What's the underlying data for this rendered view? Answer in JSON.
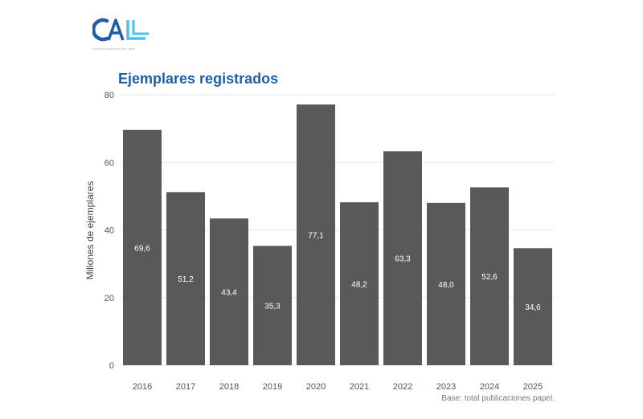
{
  "logo": {
    "caption": "CÁMARA ARGENTINA DEL LIBRO"
  },
  "colors": {
    "title": "#1f5ea8",
    "bar": "#595959",
    "bar_label": "#ffffff",
    "grid": "#e6e6e6",
    "axis_text": "#555555",
    "logo_dark": "#1f5ea8",
    "logo_light": "#4fc1e9"
  },
  "footer": {
    "note": "Base: total publicaciones papel."
  },
  "chart_data": {
    "type": "bar",
    "title": "Ejemplares registrados",
    "xlabel": "",
    "ylabel": "Millones de ejemplares",
    "ylim": [
      0,
      80
    ],
    "yticks": [
      0,
      20,
      40,
      60,
      80
    ],
    "grid": true,
    "categories": [
      "2016",
      "2017",
      "2018",
      "2019",
      "2020",
      "2021",
      "2022",
      "2023",
      "2024",
      "2025"
    ],
    "values": [
      69.6,
      51.2,
      43.4,
      35.3,
      77.1,
      48.2,
      63.3,
      48.0,
      52.6,
      34.6
    ],
    "value_labels": [
      "69,6",
      "51,2",
      "43,4",
      "35,3",
      "77,1",
      "48,2",
      "63,3",
      "48,0",
      "52,6",
      "34,6"
    ]
  }
}
